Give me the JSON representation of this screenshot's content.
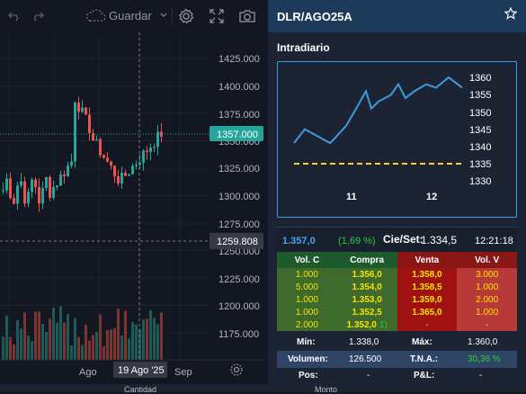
{
  "toolbar": {
    "undo_icon": "undo-icon",
    "redo_icon": "redo-icon",
    "save_label": "Guardar",
    "settings_icon": "gear-icon",
    "fullscreen_icon": "expand-icon",
    "camera_icon": "camera-icon"
  },
  "chart": {
    "price_labels": [
      "1425.000",
      "1400.000",
      "1375.000",
      "1350.000",
      "1325.000",
      "1300.000",
      "1275.000",
      "1250.000",
      "1225.000",
      "1200.000",
      "1175.000"
    ],
    "last_price_tag": "1357.000",
    "crosshair_price_tag": "1259.808",
    "time_labels": [
      "Ago",
      "19 Ago '25",
      "Sep"
    ],
    "colors": {
      "up": "#26a69a",
      "down": "#ef5350",
      "tag": "#26a69a",
      "crosshair": "#363a45"
    }
  },
  "panel": {
    "title": "DLR/AGO25A",
    "intraday_label": "Intradiario",
    "mini_chart": {
      "y_labels": [
        "1360",
        "1355",
        "1350",
        "1345",
        "1340",
        "1335",
        "1330"
      ],
      "x_labels": [
        "11",
        "12"
      ],
      "reference_value": 1335
    },
    "quote": {
      "last": "1.357,0",
      "change": "(1,69 %)",
      "settle_label": "Cie/Set:",
      "settle_value": "1.334,5",
      "time": "12:21:18"
    },
    "book": {
      "headers": [
        "Vol. C",
        "Compra",
        "Venta",
        "Vol. V"
      ],
      "rows": [
        [
          "1.000",
          "1.356,0",
          "1.358,0",
          "3.000"
        ],
        [
          "5.000",
          "1.354,0",
          "1.358,5",
          "1.000"
        ],
        [
          "1.000",
          "1.353,0",
          "1.359,0",
          "2.000"
        ],
        [
          "1.000",
          "1.352,5",
          "1.365,0",
          "1.000"
        ],
        [
          "2.000",
          "1.352,0",
          "-",
          "-"
        ]
      ],
      "bid_extra": "1)"
    },
    "stats": {
      "min_label": "Mín:",
      "min_value": "1.338,0",
      "max_label": "Máx:",
      "max_value": "1.360,0",
      "volume_label": "Volumen:",
      "volume_value": "126.500",
      "tna_label": "T.N.A.:",
      "tna_value": "30,36 %",
      "pos_label": "Pos:",
      "pos_value": "-",
      "pl_label": "P&L:",
      "pl_value": "-"
    },
    "footer": {
      "qty_label": "Cantidad",
      "amount_label": "Monto"
    }
  }
}
